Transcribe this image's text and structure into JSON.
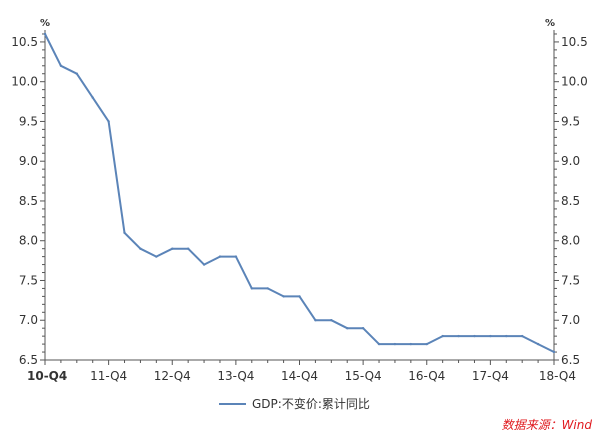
{
  "chart_data": {
    "type": "line",
    "title": "",
    "xlabel": "",
    "ylabel": "",
    "y_unit_left": "%",
    "y_unit_right": "%",
    "ylim": [
      6.5,
      10.65
    ],
    "y_ticks": [
      6.5,
      7.0,
      7.5,
      8.0,
      8.5,
      9.0,
      9.5,
      10.0,
      10.5
    ],
    "y_tick_labels": [
      "6.5",
      "7.0",
      "7.5",
      "8.0",
      "8.5",
      "9.0",
      "9.5",
      "10.0",
      "10.5"
    ],
    "x_tick_labels": [
      "10-Q4",
      "11-Q4",
      "12-Q4",
      "13-Q4",
      "14-Q4",
      "15-Q4",
      "16-Q4",
      "17-Q4",
      "18-Q4"
    ],
    "x_first_label_bold": true,
    "x": [
      "10-Q4",
      "11-Q1",
      "11-Q2",
      "11-Q3",
      "11-Q4",
      "12-Q1",
      "12-Q2",
      "12-Q3",
      "12-Q4",
      "13-Q1",
      "13-Q2",
      "13-Q3",
      "13-Q4",
      "14-Q1",
      "14-Q2",
      "14-Q3",
      "14-Q4",
      "15-Q1",
      "15-Q2",
      "15-Q3",
      "15-Q4",
      "16-Q1",
      "16-Q2",
      "16-Q3",
      "16-Q4",
      "17-Q1",
      "17-Q2",
      "17-Q3",
      "17-Q4",
      "18-Q1",
      "18-Q2",
      "18-Q3",
      "18-Q4"
    ],
    "series": [
      {
        "name": "GDP:不变价:累计同比",
        "color": "#5b84b8",
        "values": [
          10.6,
          10.2,
          10.1,
          9.8,
          9.5,
          8.1,
          7.9,
          7.8,
          7.9,
          7.9,
          7.7,
          7.8,
          7.8,
          7.4,
          7.4,
          7.3,
          7.3,
          7.0,
          7.0,
          6.9,
          6.9,
          6.7,
          6.7,
          6.7,
          6.7,
          6.8,
          6.8,
          6.8,
          6.8,
          6.8,
          6.8,
          6.7,
          6.6
        ]
      }
    ],
    "grid": false,
    "legend_position": "bottom-center"
  },
  "source_text": "数据来源：Wind",
  "colors": {
    "axis": "#555555",
    "line": "#5b84b8",
    "source": "#e0191e"
  }
}
